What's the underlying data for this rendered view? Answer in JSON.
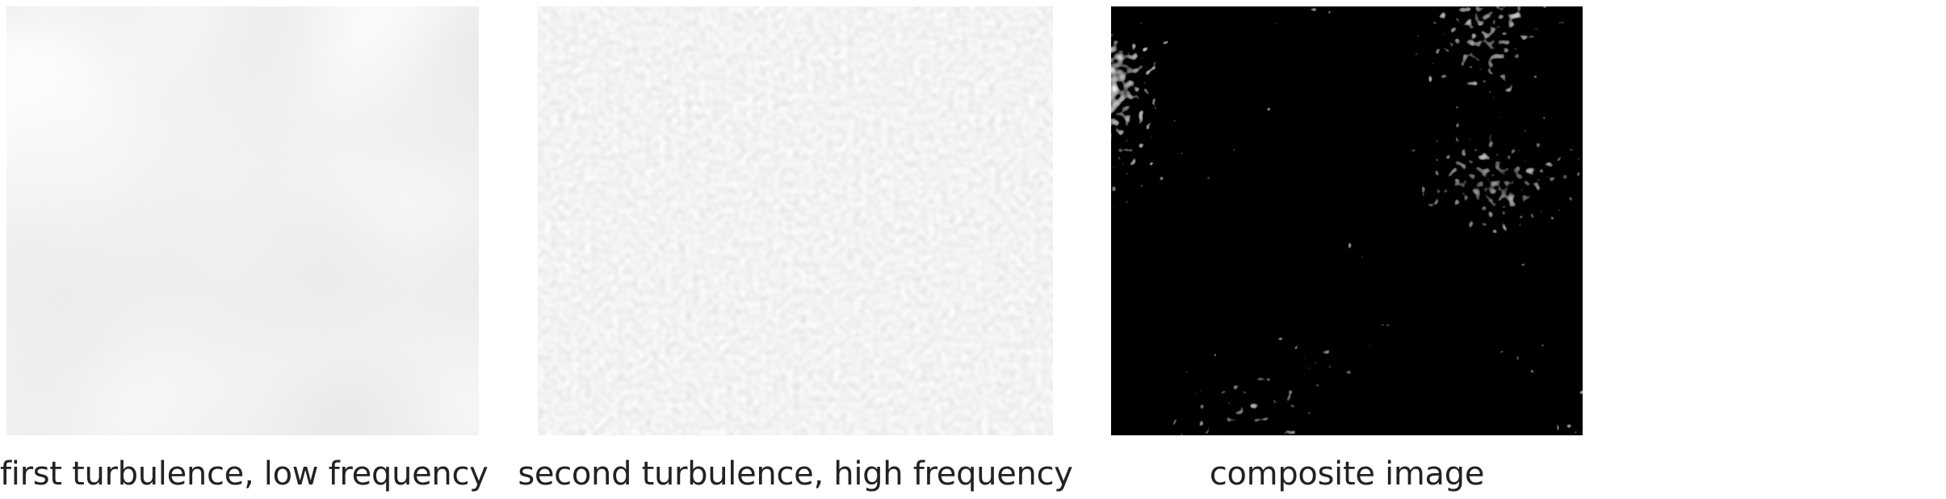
{
  "panels": [
    {
      "id": "first",
      "caption": "first turbulence, low frequency",
      "base_frequency": 0.0035,
      "octaves": 2
    },
    {
      "id": "second",
      "caption": "second turbulence, high frequency",
      "base_frequency": 0.12,
      "octaves": 1
    },
    {
      "id": "composite",
      "caption": "composite image"
    }
  ]
}
